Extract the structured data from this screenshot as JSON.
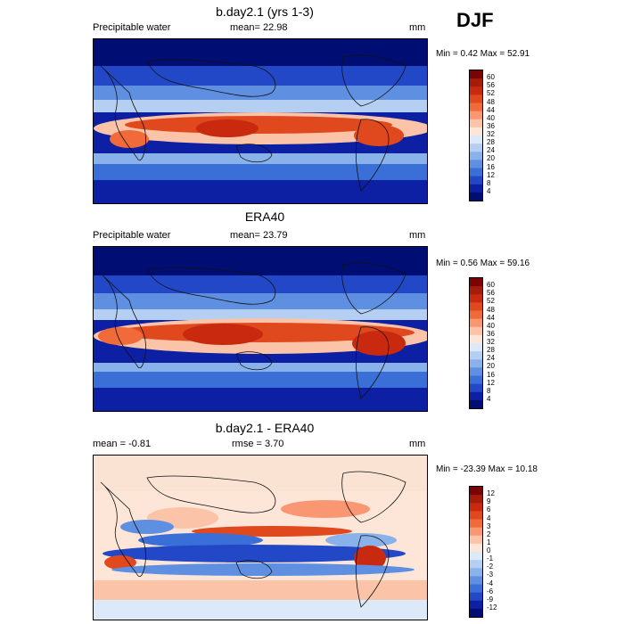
{
  "season": "DJF",
  "panels": [
    {
      "title": "b.day2.1 (yrs 1-3)",
      "left_label": "Precipitable water",
      "mean_label": "mean=",
      "mean_value": "22.98",
      "units": "mm",
      "min_label": "Min =",
      "min_value": "0.42",
      "max_label": "Max =",
      "max_value": "52.91",
      "colorbar": {
        "levels": [
          "60",
          "56",
          "52",
          "48",
          "44",
          "40",
          "36",
          "32",
          "28",
          "24",
          "20",
          "16",
          "12",
          "8",
          "4"
        ],
        "colors": [
          "#7a0403",
          "#a61c0b",
          "#c8290f",
          "#e0481e",
          "#f06a3a",
          "#f89771",
          "#fbc3a8",
          "#fde6d8",
          "#dce9f8",
          "#b5cff2",
          "#8ab2ea",
          "#5f8fe0",
          "#3b6fd8",
          "#2248c7",
          "#0d1fa3",
          "#000d73"
        ]
      }
    },
    {
      "title": "ERA40",
      "left_label": "Precipitable water",
      "mean_label": "mean=",
      "mean_value": "23.79",
      "units": "mm",
      "min_label": "Min =",
      "min_value": "0.56",
      "max_label": "Max =",
      "max_value": "59.16",
      "colorbar": {
        "levels": [
          "60",
          "56",
          "52",
          "48",
          "44",
          "40",
          "36",
          "32",
          "28",
          "24",
          "20",
          "16",
          "12",
          "8",
          "4"
        ],
        "colors": [
          "#7a0403",
          "#a61c0b",
          "#c8290f",
          "#e0481e",
          "#f06a3a",
          "#f89771",
          "#fbc3a8",
          "#fde6d8",
          "#dce9f8",
          "#b5cff2",
          "#8ab2ea",
          "#5f8fe0",
          "#3b6fd8",
          "#2248c7",
          "#0d1fa3",
          "#000d73"
        ]
      }
    },
    {
      "title": "b.day2.1 - ERA40",
      "left_label": "mean =",
      "left_value": "-0.81",
      "mid_label": "rmse =",
      "mid_value": "3.70",
      "units": "mm",
      "min_label": "Min =",
      "min_value": "-23.39",
      "max_label": "Max =",
      "max_value": "10.18",
      "colorbar": {
        "levels": [
          "12",
          "9",
          "6",
          "4",
          "3",
          "2",
          "1",
          "0",
          "-1",
          "-2",
          "-3",
          "-4",
          "-6",
          "-9",
          "-12"
        ],
        "colors": [
          "#7a0403",
          "#a61c0b",
          "#c8290f",
          "#e0481e",
          "#f06a3a",
          "#f89771",
          "#fbc3a8",
          "#fde6d8",
          "#dce9f8",
          "#b5cff2",
          "#8ab2ea",
          "#5f8fe0",
          "#3b6fd8",
          "#2248c7",
          "#0d1fa3",
          "#000d73"
        ]
      }
    }
  ],
  "chart_data": [
    {
      "type": "heatmap",
      "title": "b.day2.1 (yrs 1-3)",
      "variable": "Precipitable water",
      "units": "mm",
      "mean": 22.98,
      "min": 0.42,
      "max": 52.91,
      "contour_levels": [
        4,
        8,
        12,
        16,
        20,
        24,
        28,
        32,
        36,
        40,
        44,
        48,
        52,
        56,
        60
      ],
      "season": "DJF"
    },
    {
      "type": "heatmap",
      "title": "ERA40",
      "variable": "Precipitable water",
      "units": "mm",
      "mean": 23.79,
      "min": 0.56,
      "max": 59.16,
      "contour_levels": [
        4,
        8,
        12,
        16,
        20,
        24,
        28,
        32,
        36,
        40,
        44,
        48,
        52,
        56,
        60
      ],
      "season": "DJF"
    },
    {
      "type": "heatmap",
      "title": "b.day2.1 - ERA40",
      "units": "mm",
      "mean": -0.81,
      "rmse": 3.7,
      "min": -23.39,
      "max": 10.18,
      "contour_levels": [
        -12,
        -9,
        -6,
        -4,
        -3,
        -2,
        -1,
        0,
        1,
        2,
        3,
        4,
        6,
        9,
        12
      ],
      "season": "DJF"
    }
  ]
}
